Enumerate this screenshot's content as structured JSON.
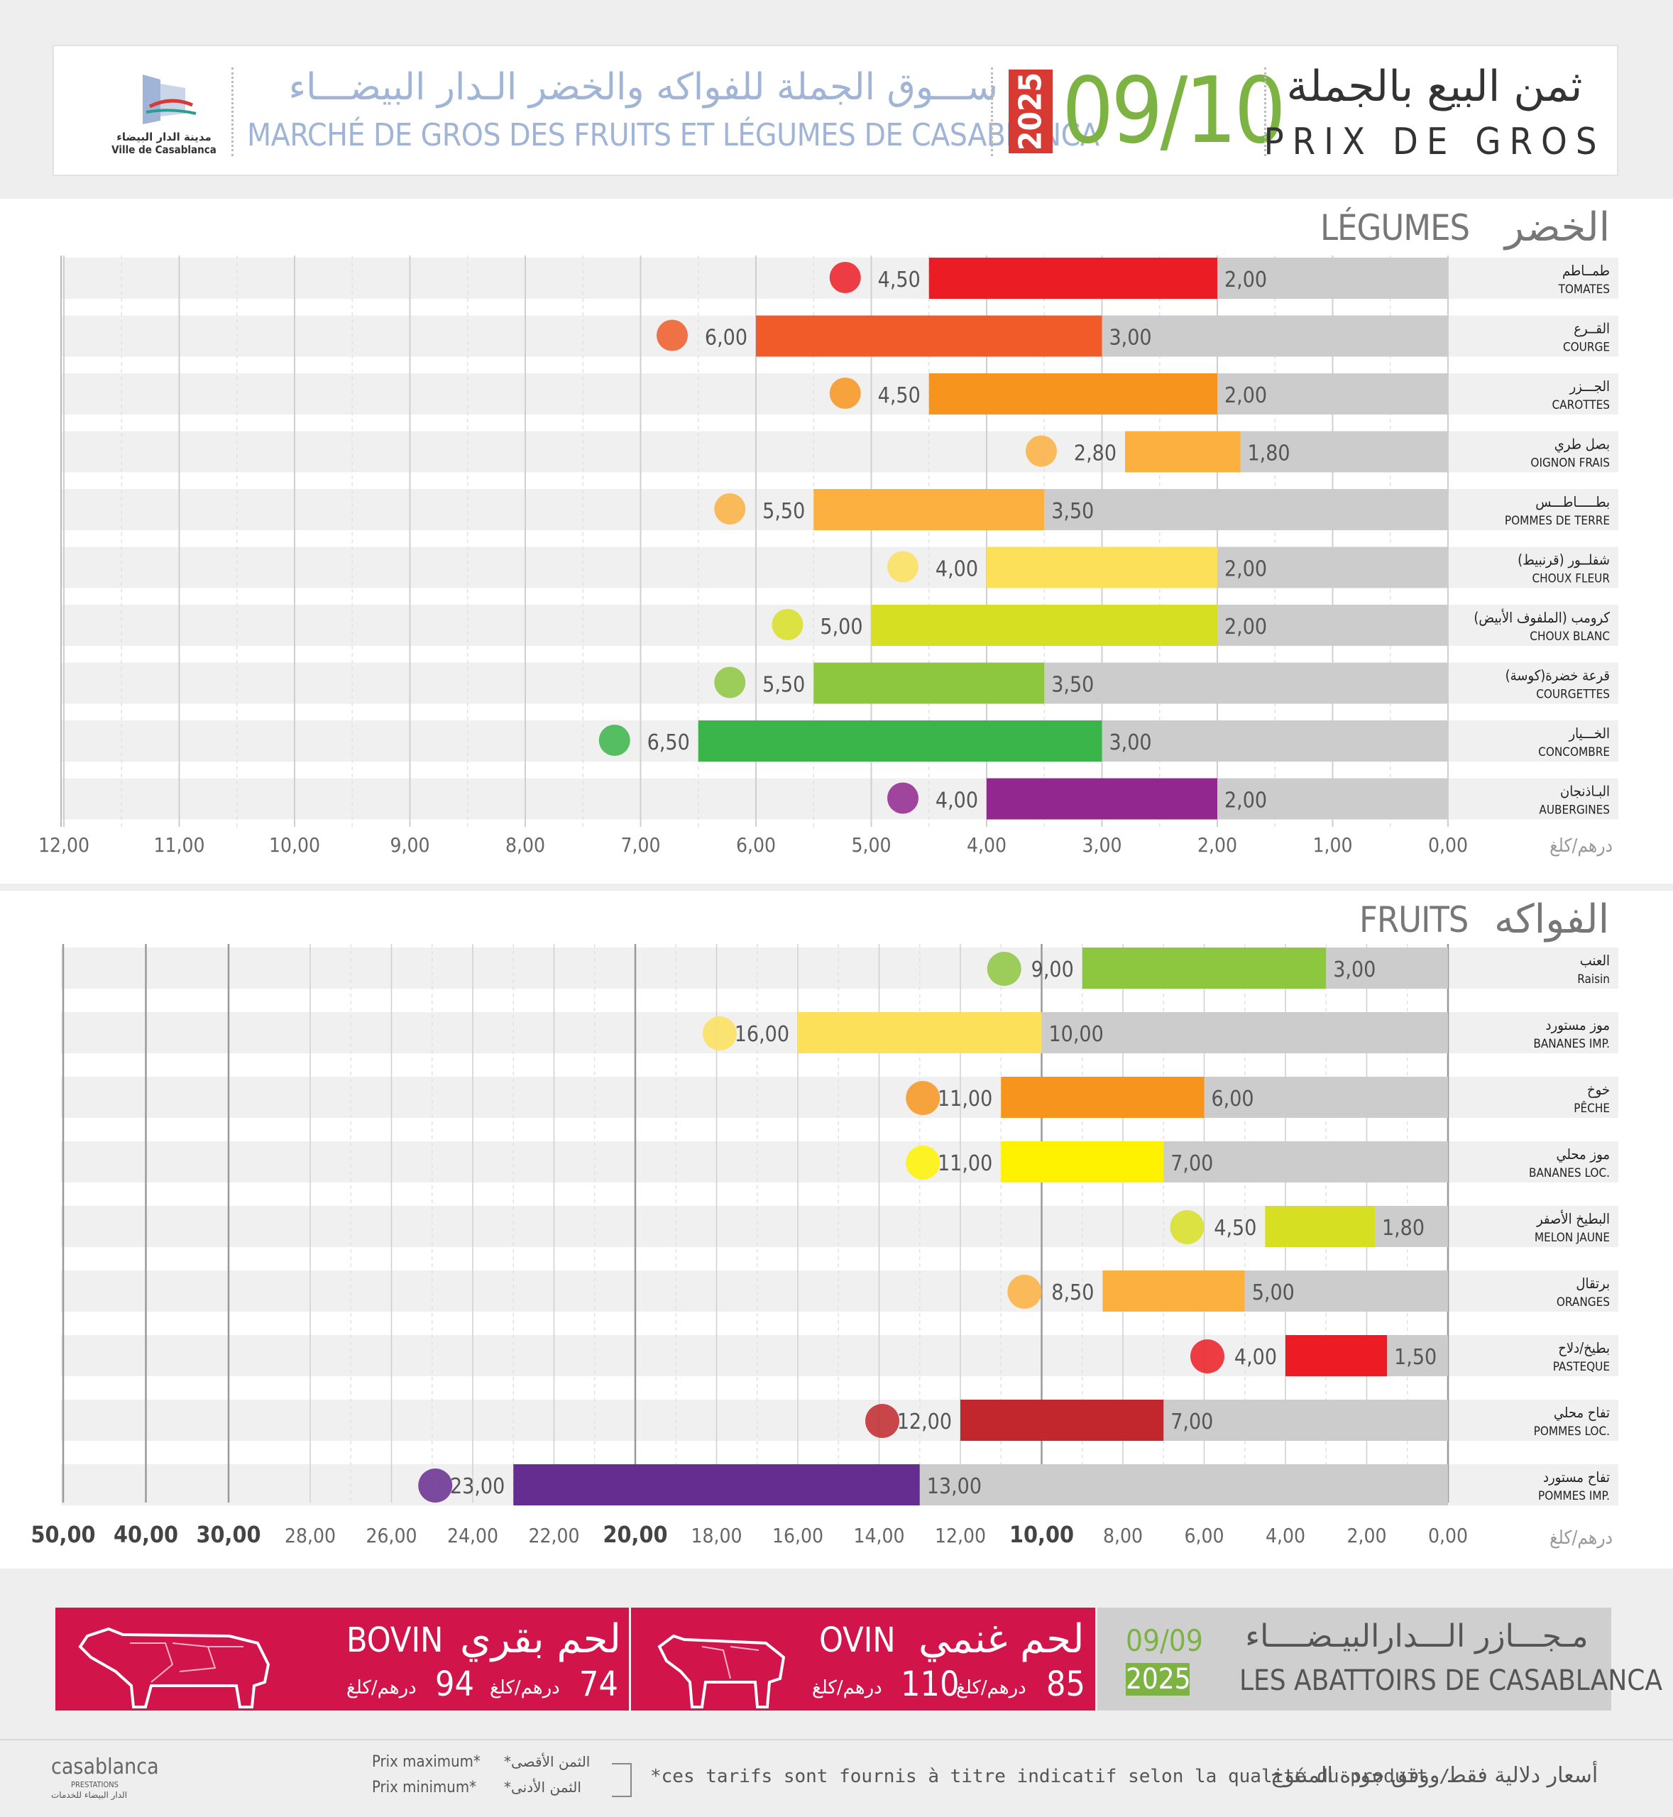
{
  "header": {
    "logo_text_ar": "مدينة الدار البيضاء",
    "logo_text_fr": "Ville de Casablanca",
    "market_ar": "ســـوق الجملة للفواكه والخضر الـدار البيضـــاء",
    "market_fr": "MARCHÉ DE GROS DES FRUITS ET LÉGUMES DE CASABLANCA",
    "year": "2025",
    "date": "09/10",
    "prix_ar": "ثمن البيع بالجملة",
    "prix_fr": "PRIX DE GROS"
  },
  "colors": {
    "accent_green": "#7cb342",
    "year_red": "#d63a32",
    "meat_red": "#d11449",
    "min_bar_gray": "#cccccc"
  },
  "chart_data": [
    {
      "type": "bar",
      "orientation": "horizontal",
      "title_fr": "LÉGUMES",
      "title_ar": "الخضر",
      "unit_label": "درهم/كلغ",
      "xlim": [
        12,
        0
      ],
      "x_ticks": [
        "12,00",
        "11,00",
        "10,00",
        "9,00",
        "8,00",
        "7,00",
        "6,00",
        "5,00",
        "4,00",
        "3,00",
        "2,00",
        "1,00",
        "0,00"
      ],
      "grid": true,
      "categories_ar": [
        "طمــاطم",
        "القــرع",
        "الجـــزر",
        "بصل طري",
        "بطـــــاطـــس",
        "شفلــور (قرنبيط)",
        "كرومب (الملفوف الأبيض)",
        "قرعة خضرة(كوسة)",
        "الخـــيار",
        "البـاذنجان"
      ],
      "categories_fr": [
        "TOMATES",
        "COURGE",
        "CAROTTES",
        "OIGNON FRAIS",
        "POMMES DE TERRE",
        "CHOUX FLEUR",
        "CHOUX BLANC",
        "COURGETTES",
        "CONCOMBRE",
        "AUBERGINES"
      ],
      "series": [
        {
          "name": "Prix maximum",
          "values": [
            4.5,
            6.0,
            4.5,
            2.8,
            5.5,
            4.0,
            5.0,
            5.5,
            6.5,
            4.0
          ],
          "labels": [
            "4,50",
            "6,00",
            "4,50",
            "2,80",
            "5,50",
            "4,00",
            "5,00",
            "5,50",
            "6,50",
            "4,00"
          ]
        },
        {
          "name": "Prix minimum",
          "values": [
            2.0,
            3.0,
            2.0,
            1.8,
            3.5,
            2.0,
            2.0,
            3.5,
            3.0,
            2.0
          ],
          "labels": [
            "2,00",
            "3,00",
            "2,00",
            "1,80",
            "3,50",
            "2,00",
            "2,00",
            "3,50",
            "3,00",
            "2,00"
          ]
        }
      ],
      "bar_colors": [
        "#ec1c24",
        "#f15a29",
        "#f7941d",
        "#fbb040",
        "#fbb040",
        "#fde05a",
        "#d7df23",
        "#8dc63f",
        "#39b54a",
        "#92278f"
      ]
    },
    {
      "type": "bar",
      "orientation": "horizontal",
      "title_fr": "FRUITS",
      "title_ar": "الفواكه",
      "unit_label": "درهم/كلغ",
      "xlim": [
        50,
        0
      ],
      "x_ticks": [
        "50,00",
        "40,00",
        "30,00",
        "28,00",
        "26,00",
        "24,00",
        "22,00",
        "20,00",
        "18,00",
        "16,00",
        "14,00",
        "12,00",
        "10,00",
        "8,00",
        "6,00",
        "4,00",
        "2,00",
        "0,00"
      ],
      "grid": true,
      "categories_ar": [
        "العنب",
        "موز مستورد",
        "خوخ",
        "موز محلي",
        "البطيخ الأصفر",
        "برتقال",
        "بطيخ/دلاح",
        "تفاح محلي",
        "تفاح مستورد"
      ],
      "categories_fr": [
        "Raisin",
        "BANANES IMP.",
        "PÊCHE",
        "BANANES LOC.",
        "MELON JAUNE",
        "ORANGES",
        "PASTEQUE",
        "POMMES LOC.",
        "POMMES IMP."
      ],
      "series": [
        {
          "name": "Prix maximum",
          "values": [
            9.0,
            16.0,
            11.0,
            11.0,
            4.5,
            8.5,
            4.0,
            12.0,
            23.0
          ],
          "labels": [
            "9,00",
            "16,00",
            "11,00",
            "11,00",
            "4,50",
            "8,50",
            "4,00",
            "12,00",
            "23,00"
          ]
        },
        {
          "name": "Prix minimum",
          "values": [
            3.0,
            10.0,
            6.0,
            7.0,
            1.8,
            5.0,
            1.5,
            7.0,
            13.0
          ],
          "labels": [
            "3,00",
            "10,00",
            "6,00",
            "7,00",
            "1,80",
            "5,00",
            "1,50",
            "7,00",
            "13,00"
          ]
        }
      ],
      "bar_colors": [
        "#8dc63f",
        "#fde05a",
        "#f7941d",
        "#fff200",
        "#d7df23",
        "#fbb040",
        "#ed1c24",
        "#c1272d",
        "#662d91"
      ]
    }
  ],
  "meat": {
    "bovin": {
      "fr": "BOVIN",
      "ar": "لحم بقري",
      "min": "74",
      "max": "94",
      "unit": "درهم/كلغ"
    },
    "ovin": {
      "fr": "OVIN",
      "ar": "لحم غنمي",
      "min": "85",
      "max": "110",
      "unit": "درهم/كلغ"
    },
    "abattoir": {
      "date": "09/09",
      "year": "2025",
      "ar": "مـجـــازر الـــدارالبيـضــــاء",
      "fr": "LES ABATTOIRS DE CASABLANCA"
    }
  },
  "footer": {
    "brand": "casablanca",
    "brand_sub": "PRESTATIONS",
    "brand_sub_ar": "الدار البيضاء للخدمات",
    "legend_max_fr": "Prix maximum*",
    "legend_min_fr": "Prix minimum*",
    "legend_max_ar": "*الثمن الأقصى",
    "legend_min_ar": "*الثمن الأدنى",
    "disclaimer_fr": "*ces tarifs sont fournis à titre indicatif selon la qualité du produit  /",
    "disclaimer_ar": "أسعار دلالية فقط ووفق جودة المنتوج"
  }
}
